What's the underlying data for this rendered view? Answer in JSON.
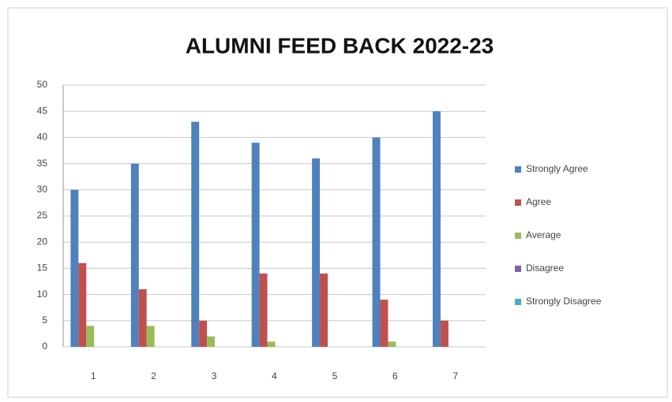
{
  "chart_data": {
    "type": "bar",
    "title": "ALUMNI FEED BACK 2022-23",
    "categories": [
      "1",
      "2",
      "3",
      "4",
      "5",
      "6",
      "7"
    ],
    "series": [
      {
        "name": "Strongly Agree",
        "color": "#4f81bd",
        "values": [
          30,
          35,
          43,
          39,
          36,
          40,
          45
        ]
      },
      {
        "name": "Agree",
        "color": "#c0504d",
        "values": [
          16,
          11,
          5,
          14,
          14,
          9,
          5
        ]
      },
      {
        "name": "Average",
        "color": "#9bbb59",
        "values": [
          4,
          4,
          2,
          1,
          0,
          1,
          0
        ]
      },
      {
        "name": "Disagree",
        "color": "#8064a2",
        "values": [
          0,
          0,
          0,
          0,
          0,
          0,
          0
        ]
      },
      {
        "name": "Strongly Disagree",
        "color": "#4bacc6",
        "values": [
          0,
          0,
          0,
          0,
          0,
          0,
          0
        ]
      }
    ],
    "ylim": [
      0,
      50
    ],
    "yticks": [
      0,
      5,
      10,
      15,
      20,
      25,
      30,
      35,
      40,
      45,
      50
    ],
    "grid": true,
    "legend": "right"
  }
}
